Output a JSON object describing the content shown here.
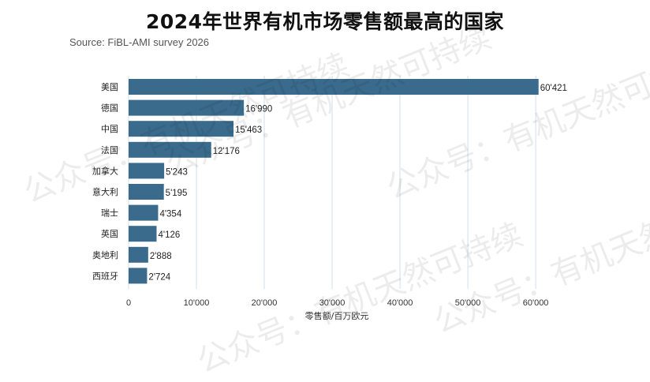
{
  "chart_data": {
    "type": "bar",
    "orientation": "horizontal",
    "title": "2024年世界有机市场零售额最高的国家",
    "subtitle": "Source: FiBL-AMI survey 2026",
    "xlabel": "零售额/百万欧元",
    "ylabel": "",
    "xlim": [
      0,
      61500
    ],
    "xticks": [
      0,
      10000,
      20000,
      30000,
      40000,
      50000,
      60000
    ],
    "xtick_labels": [
      "0",
      "10'000",
      "20'000",
      "30'000",
      "40'000",
      "50'000",
      "60'000"
    ],
    "categories": [
      "美国",
      "德国",
      "中国",
      "法国",
      "加拿大",
      "意大利",
      "瑞士",
      "英国",
      "奥地利",
      "西班牙"
    ],
    "values": [
      60421,
      16990,
      15463,
      12176,
      5243,
      5195,
      4354,
      4126,
      2888,
      2724
    ],
    "value_labels": [
      "60'421",
      "16'990",
      "15'463",
      "12'176",
      "5'243",
      "5'195",
      "4'354",
      "4'126",
      "2'888",
      "2'724"
    ],
    "grid": true,
    "bar_color": "#3a6b8c",
    "grid_color": "#cfe0ea"
  },
  "watermark": {
    "text": "公众号：有机天然可持续",
    "color": "#000000"
  }
}
